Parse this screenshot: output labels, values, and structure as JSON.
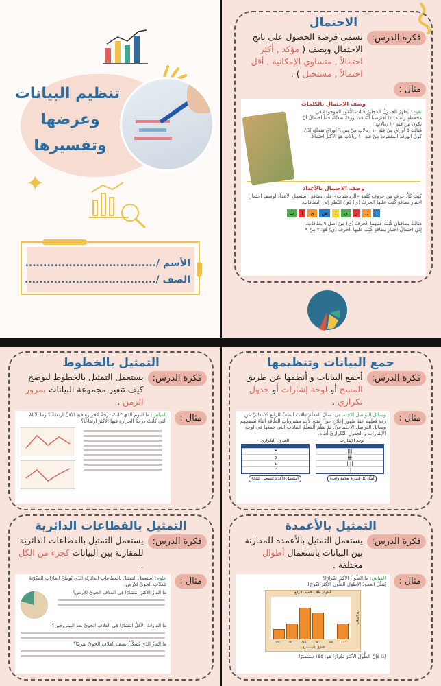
{
  "cover": {
    "title_lines": [
      "تنظيم البيانات",
      "وعرضها",
      "وتفسيرها"
    ],
    "name_label": "الأسم /",
    "class_label": "الصف /",
    "dots": "................................................"
  },
  "labels": {
    "idea": "فكرة الدرس:",
    "example": "مثال :"
  },
  "probability": {
    "title": "الاحتمال",
    "idea_text": "تسمى فرصة الحصول على ناتج الاحتمال ويصف (",
    "terms": "مؤكد , أكثر احتمالاً , متساوي الإمكانية , أقل احتمالاً , مستحيل",
    "close": ") .",
    "example": {
      "heading1": "وصف الاحتمال بالكلمات",
      "lead": "نقود :",
      "p1": "يُظهِرُ الجدولُ المُجاورُ فئاتِ النُّقودِ الموجودةِ في محفظةِ راشد. إذا افترضنا أنَّهُ فقدَ ورقةً نقديَّةً، فما احتمالُ أنْ تكونَ مِن فئةِ ١٠ ريالاتٍ.",
      "p2": "هُنالِكَ ٥ أوراقٍ مِنْ فئةِ ١٠ ريالاتٍ مِنْ بينِ ٦ أوراقٍ نقديَّةٍ، إذَنْ كونُ الورقةِ المفقودةِ مِنْ فئةِ ١٠ ريالاتٍ هوَ الأكثرُ احتمالاً.",
      "heading2": "وصف الاحتمال بالأعداد",
      "p3": "كُتِبَ كُلُّ حرفٍ مِن حروفِ كلمةِ «الرياضيات» على بطاقةٍ. استعمِلِ الأعدادَ لوصفِ احتمالِ اختيارِ بطاقةٍ كُتِبَ عليها الحرفُ (ي) دُونَ النَّظرِ إلى البطاقاتِ.",
      "cards": [
        "ا",
        "ل",
        "ر",
        "ي",
        "ا",
        "ض",
        "ي",
        "ا",
        "ت"
      ],
      "p4": "هنالِكَ بطاقتانِ كُتِبَ عليهما الحرفُ (ي) مِنْ أصلِ ٩ بطاقاتٍ.",
      "p5": "إذَنِ احتمالُ اختيارِ بطاقةٍ كُتِبَ عليها الحرفُ (ي) هُوَ: ٢ مِنْ ٩"
    }
  },
  "collect": {
    "title": "جمع البيانات وتنظيمها",
    "idea_text": "أجمع البيانات و أنظمها عن طريق",
    "t1": "المسح",
    "t2": "أو",
    "t3": "لوحة إشارات",
    "t4": "أو",
    "t5": "جدول تكراري",
    "end": ".",
    "example": {
      "lead": "وسائل التواصل الاجتماعي:",
      "p1": "سألَ المعلّمُ طلابَ الصفِّ الرابعِ الابتدائيِّ عن ردةِ فعلِهم عندَ ظهورِ إعلانٍ حولَ منتجٍ لأحدِ مشروباتِ الطّاقةِ أثناءَ تصفحِهم وسائلَ التواصلِ الاجتماعيِّ. ثمَّ نظّمَ المعلّمُ البياناتِ التي جمعَها في لوحةِ الإشاراتِ و الجدولِ التّكراريِّ أدناه.",
      "table1": "لوحة الإشارات",
      "table2": "الجدول التكراري",
      "tallies": [
        "|||",
        "卌",
        "||||",
        "||"
      ],
      "freqs": [
        "٣",
        "٥",
        "٤",
        "٢"
      ],
      "note1": "أمثّل كل إشارة بعلامة واحدة",
      "note2": "أستعمل الأعداد لتسجيل النتائج"
    }
  },
  "lines": {
    "title": "التمثيل بالخطوط",
    "idea_text": "يستعمل التمثيل بالخطوط ليوضح كيف تتغير مجموعة البيانات",
    "hl": "بمرور الزمن",
    "end": ".",
    "example": {
      "lead": "القياس:",
      "q": "ما اليومُ الذي كانتْ درجةُ الحرارةِ فيهِ الأقلَّ ارتفاعًا؟ وما الأيامُ التي كانتْ درجةُ الحرارةِ فيها الأكثرَ ارتفاعًا؟"
    }
  },
  "bars": {
    "title": "التمثيل بالأعمدة",
    "idea_text": "يستعمل التمثيل بالأعمدة للمقارنة بين البيانات باستعمال",
    "hl": "أطوال",
    "end": "مختلفة .",
    "example": {
      "lead": "القياس:",
      "q": "ما الطُّولُ الأكثرُ تكرارًا؟",
      "p1": "يُمثِّلُ العمودُ الأطولُ الطُّولَ الأكثرَ تكرارًا.",
      "chart_title": "أطوال طلاب الصف الرابع",
      "ylabel": "عدد الطلاب",
      "xlabel": "الطول بالسنتمترات",
      "x": [
        "١٣٥",
        "١٤٠",
        "١٤٥",
        "١٥٠",
        "١٥٥",
        "١٦٠"
      ],
      "values": [
        2,
        3,
        6,
        5,
        0,
        3
      ],
      "answer": "إذًا فإنَّ الطُّولَ الأكثرَ تكرارًا هو: ١٤٥ سنتمترًا."
    }
  },
  "pie": {
    "title": "التمثيل بالقطاعات الدائرية",
    "idea_text": "يستعمل التمثيل بالقطاعات الدائرية للمقارنة بين البيانات",
    "hl": "كجزء من الكل",
    "end": ".",
    "example": {
      "lead": "علوم:",
      "p1": "أستعملُ التمثيلَ بالقطاعاتِ الدائريّةِ الذي يُوضِّحُ الغازاتِ المكوّنةَ للغلافِ الجويِّ للأرضِ.",
      "q1": "ما الغازُ الأكثرُ انتشارًا في الغلافِ الجويِّ للأرضِ؟",
      "q2": "ما الغازاتُ الأقلُّ انتشارًا في الغلافِ الجويِّ بعدَ النيتروجين؟",
      "q3": "ما الغازُ الذي يُشكِّلُ نصفَ الغلافِ الجويِّ تقريبًا؟"
    }
  },
  "colors": {
    "title": "#2c6b9c",
    "highlight": "#e2625a",
    "pill": "#ebb3a6",
    "page": "#f8e4dc",
    "accent_yellow": "#f1c24b"
  },
  "icons": {
    "deco": [
      "bar-chart-icon",
      "star-icon",
      "analytics-magnifier-icon",
      "pie-chart-icon",
      "squiggle-icon"
    ]
  }
}
